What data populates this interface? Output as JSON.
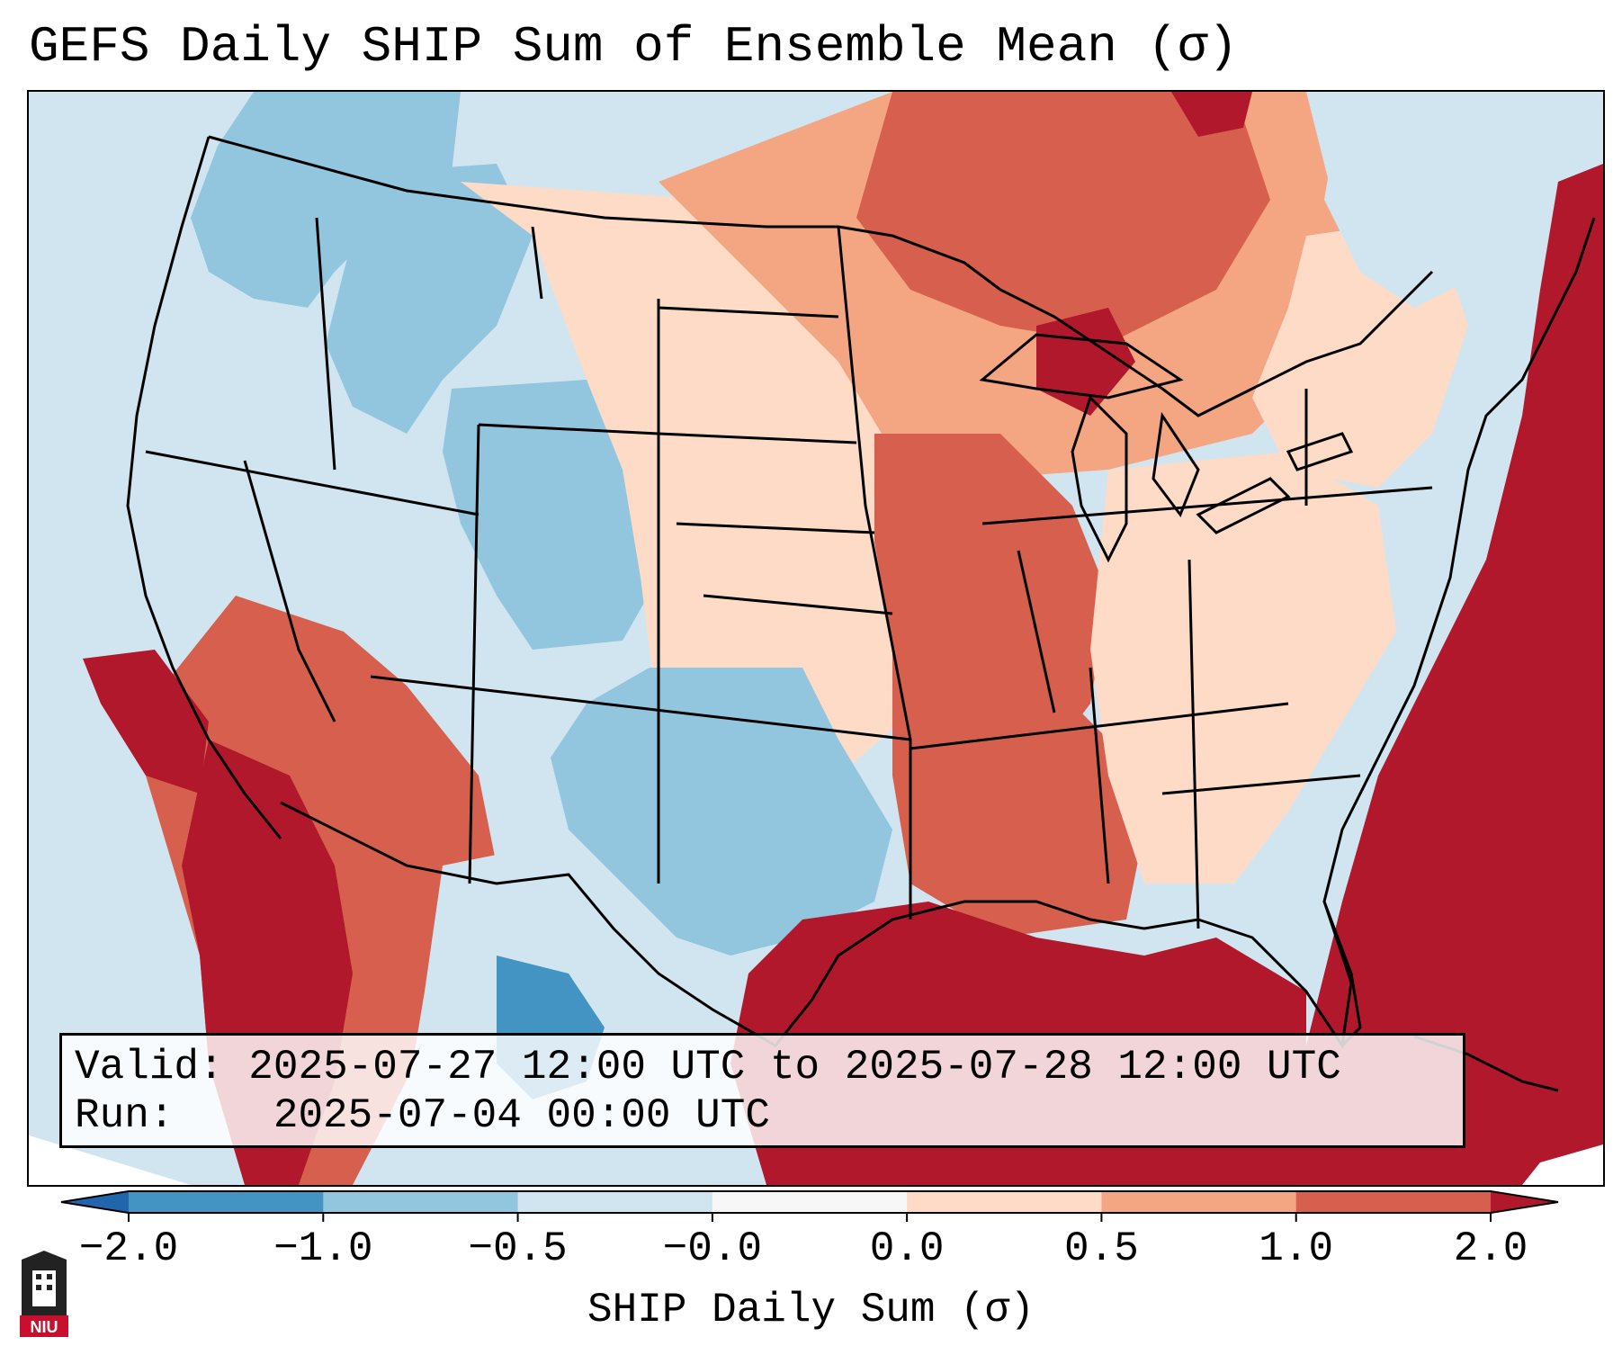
{
  "title": "GEFS Daily SHIP Sum of Ensemble Mean (σ)",
  "info": {
    "valid_label": "Valid:",
    "valid_value": "2025-07-27 12:00 UTC to 2025-07-28 12:00 UTC",
    "run_label": "Run:",
    "run_value": "2025-07-04 00:00 UTC"
  },
  "colorbar": {
    "label": "SHIP Daily Sum (σ)",
    "ticks": [
      "−2.0",
      "−1.0",
      "−0.5",
      "−0.0",
      "0.0",
      "0.5",
      "1.0",
      "2.0"
    ],
    "colors": [
      "#2166ac",
      "#4393c3",
      "#92c5de",
      "#d1e5f0",
      "#f7f7f7",
      "#fddbc7",
      "#f4a582",
      "#d6604d",
      "#b2182b"
    ]
  },
  "logo": {
    "text": "NIU"
  },
  "colors": {
    "ocean": "#d1e5f0",
    "border": "#000000"
  }
}
